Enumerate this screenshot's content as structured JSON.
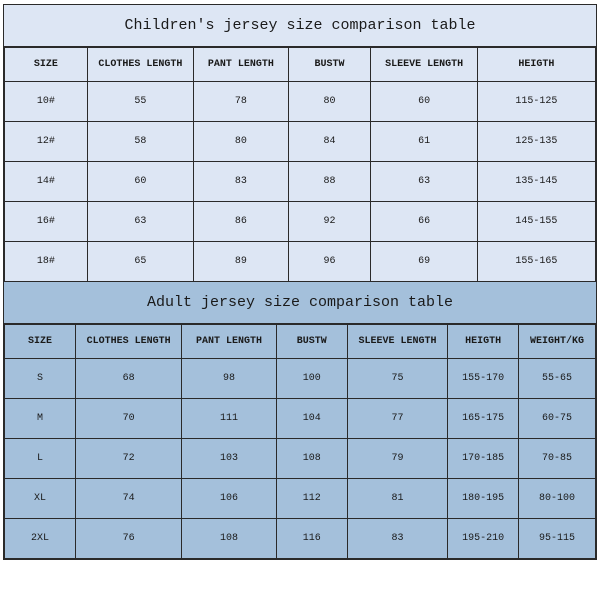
{
  "colors": {
    "children_bg": "#dde6f4",
    "adult_bg": "#a4c0db",
    "border": "#2a2a2a",
    "text": "#1a1a1a"
  },
  "font_family": "Courier New, monospace",
  "children_table": {
    "type": "table",
    "title": "Children's jersey size comparison table",
    "title_fontsize": 15,
    "header_fontsize": 10,
    "cell_fontsize": 10,
    "columns": [
      "SIZE",
      "CLOTHES LENGTH",
      "PANT LENGTH",
      "BUSTW",
      "SLEEVE LENGTH",
      "HEIGTH"
    ],
    "col_widths_pct": [
      14,
      18,
      16,
      14,
      18,
      20
    ],
    "rows": [
      [
        "10#",
        "55",
        "78",
        "80",
        "60",
        "115-125"
      ],
      [
        "12#",
        "58",
        "80",
        "84",
        "61",
        "125-135"
      ],
      [
        "14#",
        "60",
        "83",
        "88",
        "63",
        "135-145"
      ],
      [
        "16#",
        "63",
        "86",
        "92",
        "66",
        "145-155"
      ],
      [
        "18#",
        "65",
        "89",
        "96",
        "69",
        "155-165"
      ]
    ]
  },
  "adult_table": {
    "type": "table",
    "title": "Adult jersey size comparison table",
    "title_fontsize": 15,
    "header_fontsize": 10,
    "cell_fontsize": 10,
    "columns": [
      "SIZE",
      "CLOTHES LENGTH",
      "PANT LENGTH",
      "BUSTW",
      "SLEEVE LENGTH",
      "HEIGTH",
      "WEIGHT/KG"
    ],
    "col_widths_pct": [
      12,
      18,
      16,
      12,
      17,
      12,
      13
    ],
    "rows": [
      [
        "S",
        "68",
        "98",
        "100",
        "75",
        "155-170",
        "55-65"
      ],
      [
        "M",
        "70",
        "111",
        "104",
        "77",
        "165-175",
        "60-75"
      ],
      [
        "L",
        "72",
        "103",
        "108",
        "79",
        "170-185",
        "70-85"
      ],
      [
        "XL",
        "74",
        "106",
        "112",
        "81",
        "180-195",
        "80-100"
      ],
      [
        "2XL",
        "76",
        "108",
        "116",
        "83",
        "195-210",
        "95-115"
      ]
    ]
  }
}
